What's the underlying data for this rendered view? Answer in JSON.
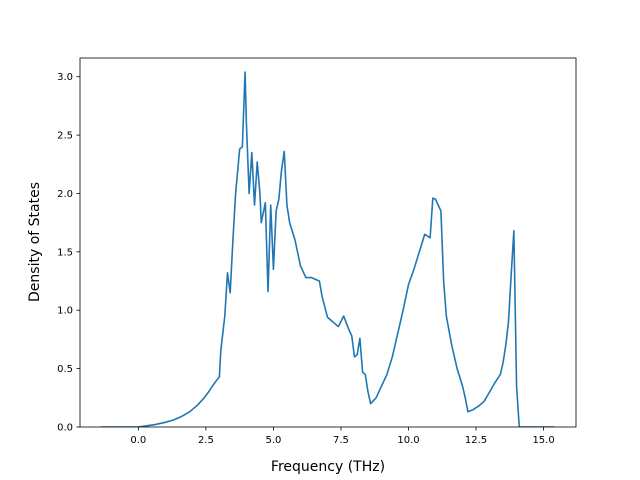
{
  "chart_data": {
    "type": "line",
    "xlabel": "Frequency (THz)",
    "ylabel": "Density of States",
    "xlim": [
      -2.16,
      16.2
    ],
    "ylim": [
      0,
      3.16
    ],
    "xticks": [
      0.0,
      2.5,
      5.0,
      7.5,
      10.0,
      12.5,
      15.0
    ],
    "xtick_labels": [
      "0.0",
      "2.5",
      "5.0",
      "7.5",
      "10.0",
      "12.5",
      "15.0"
    ],
    "yticks": [
      0.0,
      0.5,
      1.0,
      1.5,
      2.0,
      2.5,
      3.0
    ],
    "ytick_labels": [
      "0.0",
      "0.5",
      "1.0",
      "1.5",
      "2.0",
      "2.5",
      "3.0"
    ],
    "grid": false,
    "line_color": "#1f77b4",
    "series": [
      {
        "x": [
          -1.4,
          -0.5,
          0.0,
          0.3,
          0.6,
          1.0,
          1.3,
          1.6,
          1.9,
          2.2,
          2.4,
          2.6,
          2.8,
          3.0,
          3.05,
          3.2,
          3.3,
          3.4,
          3.5,
          3.6,
          3.75,
          3.85,
          3.95,
          4.0,
          4.1,
          4.2,
          4.3,
          4.4,
          4.5,
          4.55,
          4.7,
          4.8,
          4.9,
          5.0,
          5.1,
          5.2,
          5.3,
          5.4,
          5.5,
          5.6,
          5.8,
          6.0,
          6.2,
          6.4,
          6.6,
          6.7,
          6.8,
          6.9,
          7.0,
          7.2,
          7.4,
          7.6,
          7.8,
          7.9,
          8.0,
          8.1,
          8.2,
          8.3,
          8.4,
          8.5,
          8.6,
          8.8,
          9.0,
          9.2,
          9.4,
          9.6,
          9.8,
          10.0,
          10.2,
          10.4,
          10.6,
          10.8,
          10.9,
          11.0,
          11.1,
          11.2,
          11.3,
          11.4,
          11.6,
          11.8,
          12.0,
          12.1,
          12.2,
          12.4,
          12.6,
          12.8,
          13.0,
          13.2,
          13.4,
          13.5,
          13.6,
          13.7,
          13.8,
          13.9,
          14.0,
          14.1,
          14.2,
          14.6,
          15.4
        ],
        "y": [
          0.0,
          0.0,
          0.0,
          0.01,
          0.02,
          0.04,
          0.06,
          0.09,
          0.13,
          0.19,
          0.24,
          0.3,
          0.37,
          0.43,
          0.65,
          0.95,
          1.32,
          1.15,
          1.6,
          2.0,
          2.38,
          2.4,
          3.04,
          2.6,
          2.0,
          2.35,
          1.9,
          2.27,
          2.0,
          1.75,
          1.92,
          1.16,
          1.9,
          1.35,
          1.85,
          1.95,
          2.2,
          2.36,
          1.9,
          1.75,
          1.6,
          1.38,
          1.28,
          1.28,
          1.26,
          1.25,
          1.12,
          1.03,
          0.94,
          0.9,
          0.86,
          0.95,
          0.83,
          0.78,
          0.6,
          0.62,
          0.76,
          0.47,
          0.45,
          0.3,
          0.2,
          0.25,
          0.35,
          0.45,
          0.6,
          0.8,
          1.0,
          1.22,
          1.35,
          1.5,
          1.65,
          1.62,
          1.96,
          1.95,
          1.9,
          1.85,
          1.25,
          0.95,
          0.7,
          0.5,
          0.35,
          0.25,
          0.13,
          0.15,
          0.18,
          0.22,
          0.3,
          0.38,
          0.45,
          0.55,
          0.7,
          0.9,
          1.3,
          1.68,
          0.35,
          0.0,
          0.0,
          0.0,
          0.0
        ]
      }
    ]
  }
}
